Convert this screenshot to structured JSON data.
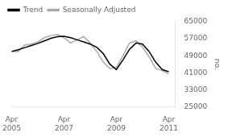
{
  "chart_data": {
    "type": "line",
    "ylabel": "no.",
    "x": [
      2005.25,
      2005.5,
      2005.75,
      2006.0,
      2006.25,
      2006.5,
      2006.75,
      2007.0,
      2007.25,
      2007.5,
      2007.75,
      2008.0,
      2008.25,
      2008.5,
      2008.75,
      2009.0,
      2009.25,
      2009.5,
      2009.75,
      2010.0,
      2010.25,
      2010.5,
      2010.75,
      2011.0,
      2011.25
    ],
    "series": [
      {
        "name": "Trend",
        "color": "#000000",
        "values": [
          51000,
          51800,
          52800,
          53800,
          54800,
          56000,
          57200,
          58000,
          58200,
          57500,
          56500,
          55500,
          54500,
          53000,
          50000,
          45000,
          42500,
          47000,
          52000,
          55000,
          54500,
          51000,
          46000,
          42500,
          41500
        ]
      },
      {
        "name": "Seasonally Adjusted",
        "color": "#aaaaaa",
        "values": [
          51000,
          51000,
          54000,
          54500,
          55500,
          57500,
          58500,
          59000,
          57500,
          55000,
          56500,
          58000,
          55000,
          51000,
          46000,
          43000,
          43500,
          49000,
          55000,
          56000,
          53000,
          48500,
          43000,
          42000,
          40500
        ]
      }
    ],
    "xlim": [
      2005.25,
      2011.5
    ],
    "xticks": [
      {
        "value": 2005.25,
        "label": "Apr\n2005"
      },
      {
        "value": 2007.25,
        "label": "Apr\n2007"
      },
      {
        "value": 2009.25,
        "label": "Apr\n2009"
      },
      {
        "value": 2011.25,
        "label": "Apr\n2011"
      }
    ],
    "ylim": [
      25000,
      65000
    ],
    "yticks": [
      25000,
      33000,
      41000,
      49000,
      57000,
      65000
    ],
    "grid": false,
    "legend": "upper left"
  }
}
